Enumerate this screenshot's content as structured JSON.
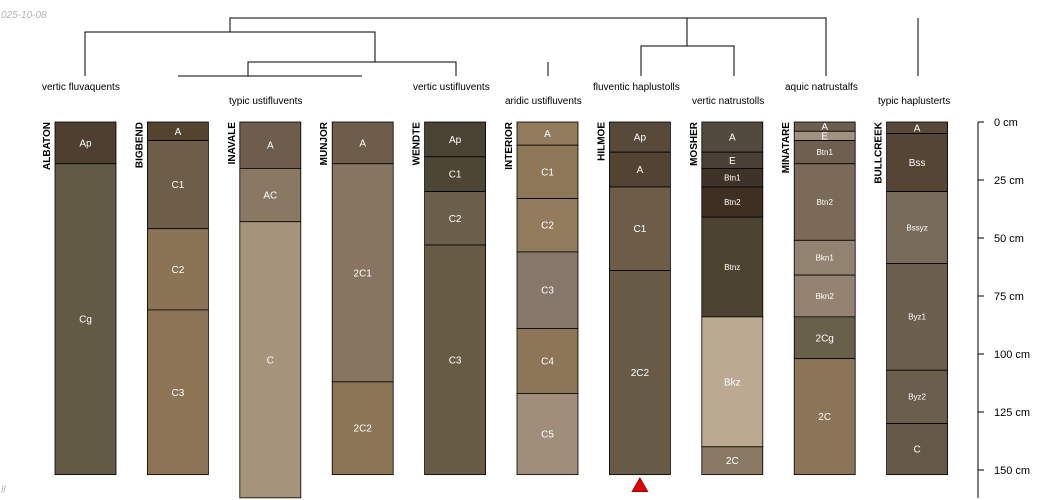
{
  "header": {
    "date_fragment": "025-10-08",
    "footer_fragment": "ll"
  },
  "chart_data": {
    "type": "soil-profile-sketch",
    "depth_unit": "cm",
    "depth_axis": {
      "ticks": [
        0,
        25,
        50,
        75,
        100,
        125,
        150
      ],
      "tick_labels": [
        "0 cm",
        "25 cm",
        "50 cm",
        "75 cm",
        "100 cm",
        "125 cm",
        "150 cm"
      ],
      "range": [
        0,
        162
      ]
    },
    "groups": [
      {
        "label": "vertic fluvaquents"
      },
      {
        "label": "typic ustifluvents"
      },
      {
        "label": "vertic ustifluvents"
      },
      {
        "label": "aridic ustifluvents"
      },
      {
        "label": "fluventic haplustolls"
      },
      {
        "label": "vertic natrustolls"
      },
      {
        "label": "aquic natrustalfs"
      },
      {
        "label": "typic haplusterts"
      }
    ],
    "profiles": [
      {
        "name": "ALBATON",
        "horizons": [
          {
            "name": "Ap",
            "top": 0,
            "bottom": 18,
            "color": "#4f3f30"
          },
          {
            "name": "Cg",
            "top": 18,
            "bottom": 152,
            "color": "#635a45"
          }
        ]
      },
      {
        "name": "BIGBEND",
        "horizons": [
          {
            "name": "A",
            "top": 0,
            "bottom": 8,
            "color": "#54432f"
          },
          {
            "name": "C1",
            "top": 8,
            "bottom": 46,
            "color": "#6e5d48"
          },
          {
            "name": "C2",
            "top": 46,
            "bottom": 81,
            "color": "#8b7356"
          },
          {
            "name": "C3",
            "top": 81,
            "bottom": 152,
            "color": "#8d7455"
          }
        ]
      },
      {
        "name": "INAVALE",
        "horizons": [
          {
            "name": "A",
            "top": 0,
            "bottom": 20,
            "color": "#6e5d4c"
          },
          {
            "name": "AC",
            "top": 20,
            "bottom": 43,
            "color": "#897862"
          },
          {
            "name": "C",
            "top": 43,
            "bottom": 162,
            "color": "#a6937c"
          }
        ]
      },
      {
        "name": "MUNJOR",
        "horizons": [
          {
            "name": "A",
            "top": 0,
            "bottom": 18,
            "color": "#6d5d4a"
          },
          {
            "name": "2C1",
            "top": 18,
            "bottom": 112,
            "color": "#887561"
          },
          {
            "name": "2C2",
            "top": 112,
            "bottom": 152,
            "color": "#8c7456"
          }
        ]
      },
      {
        "name": "WENDTE",
        "horizons": [
          {
            "name": "Ap",
            "top": 0,
            "bottom": 15,
            "color": "#4a4232"
          },
          {
            "name": "C1",
            "top": 15,
            "bottom": 30,
            "color": "#4e4634"
          },
          {
            "name": "C2",
            "top": 30,
            "bottom": 53,
            "color": "#6b604b"
          },
          {
            "name": "C3",
            "top": 53,
            "bottom": 152,
            "color": "#665b45"
          }
        ]
      },
      {
        "name": "INTERIOR",
        "horizons": [
          {
            "name": "A",
            "top": 0,
            "bottom": 10,
            "color": "#927a5c"
          },
          {
            "name": "C1",
            "top": 10,
            "bottom": 33,
            "color": "#8e7858"
          },
          {
            "name": "C2",
            "top": 33,
            "bottom": 56,
            "color": "#937b5e"
          },
          {
            "name": "C3",
            "top": 56,
            "bottom": 89,
            "color": "#86776a"
          },
          {
            "name": "C4",
            "top": 89,
            "bottom": 117,
            "color": "#8d7557"
          },
          {
            "name": "C5",
            "top": 117,
            "bottom": 152,
            "color": "#a08e7b"
          }
        ]
      },
      {
        "name": "HILMOE",
        "marker": true,
        "horizons": [
          {
            "name": "Ap",
            "top": 0,
            "bottom": 13,
            "color": "#584a3b"
          },
          {
            "name": "A",
            "top": 13,
            "bottom": 28,
            "color": "#534332"
          },
          {
            "name": "C1",
            "top": 28,
            "bottom": 64,
            "color": "#6d5c48"
          },
          {
            "name": "2C2",
            "top": 64,
            "bottom": 152,
            "color": "#675b47"
          }
        ]
      },
      {
        "name": "MOSHER",
        "horizons": [
          {
            "name": "A",
            "top": 0,
            "bottom": 13,
            "color": "#524a3f"
          },
          {
            "name": "E",
            "top": 13,
            "bottom": 20,
            "color": "#4a4035"
          },
          {
            "name": "Btn1",
            "top": 20,
            "bottom": 28,
            "color": "#3e3326"
          },
          {
            "name": "Btn2",
            "top": 28,
            "bottom": 41,
            "color": "#3f2f22"
          },
          {
            "name": "Btnz",
            "top": 41,
            "bottom": 84,
            "color": "#4c4431"
          },
          {
            "name": "Bkz",
            "top": 84,
            "bottom": 140,
            "color": "#bba991"
          },
          {
            "name": "2C",
            "top": 140,
            "bottom": 152,
            "color": "#8a7a65"
          }
        ]
      },
      {
        "name": "MINATARE",
        "horizons": [
          {
            "name": "A",
            "top": 0,
            "bottom": 4,
            "color": "#6d5e4d"
          },
          {
            "name": "E",
            "top": 4,
            "bottom": 8,
            "color": "#a0927f"
          },
          {
            "name": "Btn1",
            "top": 8,
            "bottom": 18,
            "color": "#6f5f4e"
          },
          {
            "name": "Btn2",
            "top": 18,
            "bottom": 51,
            "color": "#7a6a57"
          },
          {
            "name": "Bkn1",
            "top": 51,
            "bottom": 66,
            "color": "#928370"
          },
          {
            "name": "Bkn2",
            "top": 66,
            "bottom": 84,
            "color": "#958371"
          },
          {
            "name": "2Cg",
            "top": 84,
            "bottom": 102,
            "color": "#68604b"
          },
          {
            "name": "2C",
            "top": 102,
            "bottom": 152,
            "color": "#8c7458"
          }
        ]
      },
      {
        "name": "BULLCREEK",
        "horizons": [
          {
            "name": "A",
            "top": 0,
            "bottom": 5,
            "color": "#594838"
          },
          {
            "name": "Bss",
            "top": 5,
            "bottom": 30,
            "color": "#544535"
          },
          {
            "name": "Bssyz",
            "top": 30,
            "bottom": 61,
            "color": "#786b59"
          },
          {
            "name": "Byz1",
            "top": 61,
            "bottom": 107,
            "color": "#6b604d"
          },
          {
            "name": "Byz2",
            "top": 107,
            "bottom": 130,
            "color": "#6a5e4d"
          },
          {
            "name": "C",
            "top": 130,
            "bottom": 152,
            "color": "#655a48"
          }
        ]
      }
    ]
  }
}
